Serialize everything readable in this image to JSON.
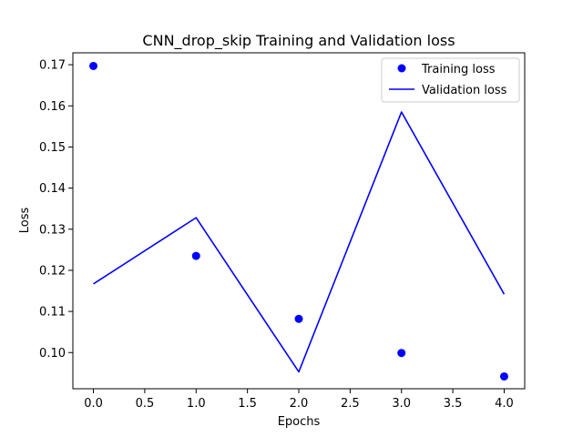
{
  "chart_data": {
    "type": "line",
    "title": "CNN_drop_skip Training and Validation loss",
    "xlabel": "Epochs",
    "ylabel": "Loss",
    "x": [
      0,
      1,
      2,
      3,
      4
    ],
    "xlim": [
      -0.2,
      4.2
    ],
    "ylim": [
      0.0912,
      0.1729
    ],
    "xticks": [
      0.0,
      0.5,
      1.0,
      1.5,
      2.0,
      2.5,
      3.0,
      3.5,
      4.0
    ],
    "xtick_labels": [
      "0.0",
      "0.5",
      "1.0",
      "1.5",
      "2.0",
      "2.5",
      "3.0",
      "3.5",
      "4.0"
    ],
    "yticks": [
      0.1,
      0.11,
      0.12,
      0.13,
      0.14,
      0.15,
      0.16,
      0.17
    ],
    "ytick_labels": [
      "0.10",
      "0.11",
      "0.12",
      "0.13",
      "0.14",
      "0.15",
      "0.16",
      "0.17"
    ],
    "grid": false,
    "legend_position": "top-right",
    "series": [
      {
        "name": "Training loss",
        "style": "scatter",
        "color": "#0000ff",
        "values": [
          0.1697,
          0.1235,
          0.1082,
          0.0999,
          0.0942
        ]
      },
      {
        "name": "Validation loss",
        "style": "line",
        "color": "#0000ff",
        "values": [
          0.1167,
          0.1328,
          0.0953,
          0.1585,
          0.1142
        ]
      }
    ]
  }
}
